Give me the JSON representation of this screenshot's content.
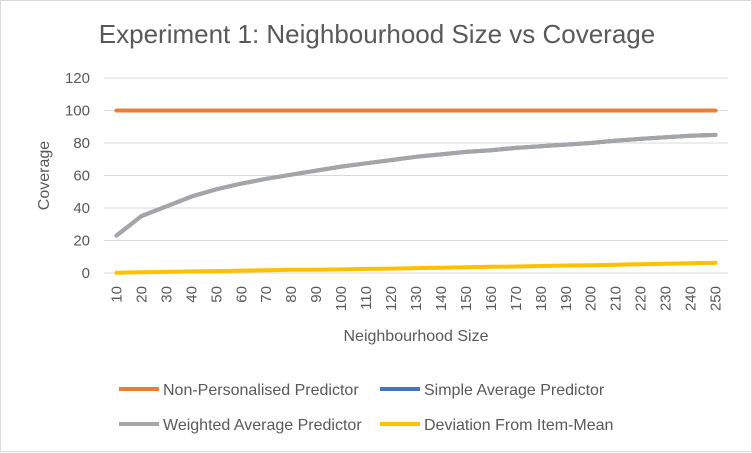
{
  "chart_data": {
    "type": "line",
    "title": "Experiment 1: Neighbourhood Size vs Coverage",
    "xlabel": "Neighbourhood Size",
    "ylabel": "Coverage",
    "ylim": [
      0,
      120
    ],
    "yticks": [
      0,
      20,
      40,
      60,
      80,
      100,
      120
    ],
    "grid": true,
    "legend_position": "bottom",
    "categories": [
      "10",
      "20",
      "30",
      "40",
      "50",
      "60",
      "70",
      "80",
      "90",
      "100",
      "110",
      "120",
      "130",
      "140",
      "150",
      "160",
      "170",
      "180",
      "190",
      "200",
      "210",
      "220",
      "230",
      "240",
      "250"
    ],
    "series": [
      {
        "name": "Non-Personalised Predictor",
        "color": "#ED7D31",
        "values": [
          100,
          100,
          100,
          100,
          100,
          100,
          100,
          100,
          100,
          100,
          100,
          100,
          100,
          100,
          100,
          100,
          100,
          100,
          100,
          100,
          100,
          100,
          100,
          100,
          100
        ]
      },
      {
        "name": "Simple Average Predictor",
        "color": "#4472C4",
        "values": [
          23,
          35,
          41,
          47,
          51.5,
          55,
          58,
          60.5,
          63,
          65.5,
          67.5,
          69.5,
          71.5,
          73,
          74.5,
          75.5,
          77,
          78,
          79,
          80,
          81.5,
          82.5,
          83.5,
          84.5,
          85
        ]
      },
      {
        "name": "Weighted Average Predictor",
        "color": "#A5A5A5",
        "values": [
          23,
          35,
          41,
          47,
          51.5,
          55,
          58,
          60.5,
          63,
          65.5,
          67.5,
          69.5,
          71.5,
          73,
          74.5,
          75.5,
          77,
          78,
          79,
          80,
          81.5,
          82.5,
          83.5,
          84.5,
          85
        ]
      },
      {
        "name": "Deviation From Item-Mean",
        "color": "#FFC000",
        "values": [
          0.2,
          0.5,
          0.7,
          1,
          1.2,
          1.5,
          1.7,
          2,
          2,
          2.2,
          2.5,
          2.7,
          3,
          3.2,
          3.5,
          3.8,
          4,
          4.3,
          4.6,
          4.8,
          5.1,
          5.4,
          5.7,
          6,
          6.3
        ]
      }
    ]
  }
}
